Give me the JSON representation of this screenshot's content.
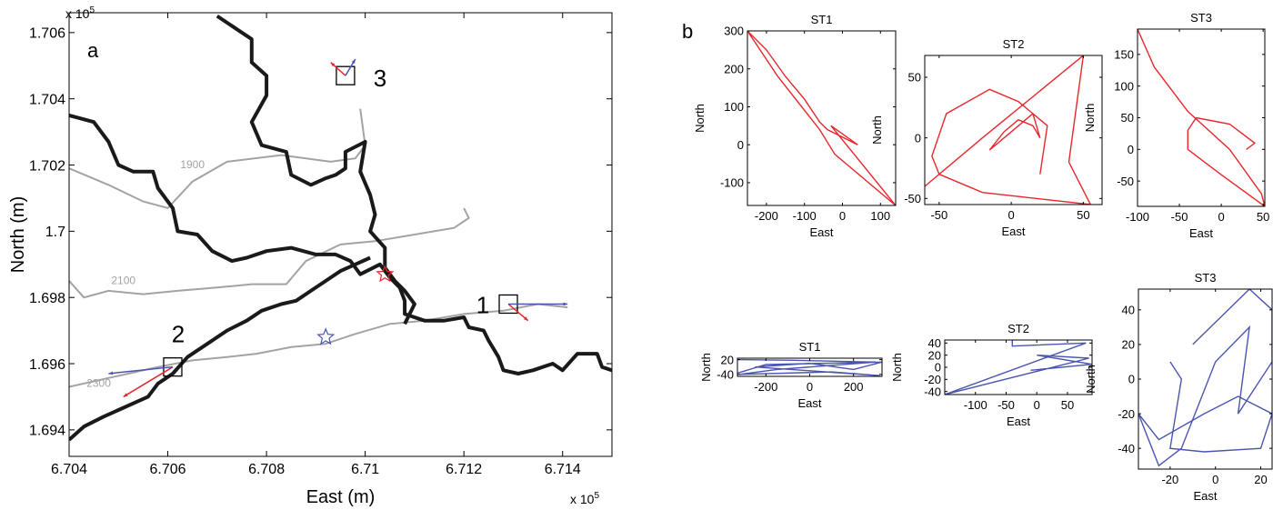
{
  "colors": {
    "red": "#e8262b",
    "blue": "#4a55b0",
    "contour": "#a3a3a3",
    "boundary": "#1a1a1a",
    "axis": "#000000"
  },
  "chart_data": [
    {
      "id": "a",
      "panel_label": "a",
      "type": "map",
      "xlabel": "East (m)",
      "ylabel": "North (m)",
      "x_multiplier": "x 10",
      "x_multiplier_exp": "5",
      "y_multiplier": "x 10",
      "y_multiplier_exp": "5",
      "xlim": [
        6.704,
        6.715
      ],
      "ylim": [
        1.6932,
        1.7066
      ],
      "xticks": [
        6.704,
        6.706,
        6.708,
        6.71,
        6.712,
        6.714
      ],
      "xtick_labels": [
        "6.704",
        "6.706",
        "6.708",
        "6.71",
        "6.712",
        "6.714"
      ],
      "yticks": [
        1.694,
        1.696,
        1.698,
        1.7,
        1.702,
        1.704,
        1.706
      ],
      "ytick_labels": [
        "1.694",
        "1.696",
        "1.698",
        "1.7",
        "1.702",
        "1.704",
        "1.706"
      ],
      "boundaries": [
        [
          [
            6.704,
            1.7035
          ],
          [
            6.7045,
            1.7033
          ],
          [
            6.7048,
            1.7027
          ],
          [
            6.705,
            1.702
          ],
          [
            6.7053,
            1.7018
          ],
          [
            6.7057,
            1.7018
          ],
          [
            6.7058,
            1.7013
          ],
          [
            6.7061,
            1.7007
          ],
          [
            6.7062,
            1.7
          ],
          [
            6.7066,
            1.6999
          ],
          [
            6.7069,
            1.6994
          ],
          [
            6.7073,
            1.6991
          ],
          [
            6.7076,
            1.6992
          ],
          [
            6.708,
            1.6994
          ],
          [
            6.7085,
            1.6995
          ],
          [
            6.709,
            1.6993
          ],
          [
            6.7094,
            1.6993
          ],
          [
            6.7097,
            1.6991
          ],
          [
            6.7099,
            1.6987
          ],
          [
            6.7103,
            1.699
          ],
          [
            6.7105,
            1.6986
          ],
          [
            6.7107,
            1.6983
          ],
          [
            6.7108,
            1.6979
          ],
          [
            6.7108,
            1.6975
          ],
          [
            6.7112,
            1.6973
          ],
          [
            6.7116,
            1.6973
          ],
          [
            6.712,
            1.6974
          ],
          [
            6.7121,
            1.6971
          ],
          [
            6.7124,
            1.697
          ],
          [
            6.7125,
            1.6967
          ],
          [
            6.7127,
            1.6962
          ],
          [
            6.7128,
            1.6958
          ],
          [
            6.7131,
            1.6957
          ],
          [
            6.7134,
            1.6958
          ],
          [
            6.7138,
            1.696
          ],
          [
            6.714,
            1.6958
          ],
          [
            6.7143,
            1.6963
          ],
          [
            6.7147,
            1.6963
          ],
          [
            6.7148,
            1.6959
          ],
          [
            6.715,
            1.6958
          ]
        ],
        [
          [
            6.707,
            1.7065
          ],
          [
            6.7074,
            1.7061
          ],
          [
            6.7077,
            1.7058
          ],
          [
            6.7077,
            1.7051
          ],
          [
            6.708,
            1.7047
          ],
          [
            6.708,
            1.7041
          ],
          [
            6.7077,
            1.7033
          ],
          [
            6.7079,
            1.7026
          ],
          [
            6.7084,
            1.7024
          ],
          [
            6.7085,
            1.7017
          ],
          [
            6.7089,
            1.7014
          ],
          [
            6.7092,
            1.7016
          ],
          [
            6.7094,
            1.7017
          ],
          [
            6.7096,
            1.7019
          ],
          [
            6.7096,
            1.7024
          ],
          [
            6.71,
            1.7027
          ],
          [
            6.7099,
            1.7018
          ],
          [
            6.7101,
            1.7011
          ],
          [
            6.7102,
            1.7005
          ],
          [
            6.7101,
            1.7
          ],
          [
            6.7104,
            1.6995
          ],
          [
            6.7104,
            1.6989
          ],
          [
            6.7106,
            1.6985
          ],
          [
            6.7108,
            1.6982
          ],
          [
            6.711,
            1.6978
          ],
          [
            6.7108,
            1.6972
          ]
        ],
        [
          [
            6.704,
            1.6937
          ],
          [
            6.7043,
            1.6941
          ],
          [
            6.7047,
            1.6944
          ],
          [
            6.705,
            1.6946
          ],
          [
            6.7053,
            1.6948
          ],
          [
            6.7056,
            1.695
          ],
          [
            6.7058,
            1.6954
          ],
          [
            6.7061,
            1.6957
          ],
          [
            6.7064,
            1.6962
          ],
          [
            6.7068,
            1.6966
          ],
          [
            6.7072,
            1.697
          ],
          [
            6.7076,
            1.6973
          ],
          [
            6.7079,
            1.6976
          ],
          [
            6.7083,
            1.6978
          ],
          [
            6.7086,
            1.6979
          ],
          [
            6.7089,
            1.6982
          ],
          [
            6.7092,
            1.6985
          ],
          [
            6.7095,
            1.6988
          ],
          [
            6.7098,
            1.699
          ],
          [
            6.7101,
            1.6992
          ]
        ]
      ],
      "contours": [
        {
          "label": "1900",
          "points": [
            [
              6.704,
              1.7019
            ],
            [
              6.7048,
              1.7014
            ],
            [
              6.7055,
              1.7009
            ],
            [
              6.706,
              1.7007
            ],
            [
              6.7065,
              1.7015
            ],
            [
              6.7072,
              1.7021
            ],
            [
              6.7083,
              1.7023
            ],
            [
              6.7093,
              1.7021
            ],
            [
              6.7098,
              1.7022
            ],
            [
              6.71,
              1.7026
            ],
            [
              6.7099,
              1.7037
            ]
          ]
        },
        {
          "label": "2100",
          "points": [
            [
              6.704,
              1.6985
            ],
            [
              6.7043,
              1.698
            ],
            [
              6.7048,
              1.6982
            ],
            [
              6.7055,
              1.6981
            ],
            [
              6.7062,
              1.6982
            ],
            [
              6.707,
              1.6983
            ],
            [
              6.7077,
              1.6984
            ],
            [
              6.7084,
              1.6984
            ],
            [
              6.7088,
              1.6991
            ],
            [
              6.7095,
              1.6996
            ],
            [
              6.7102,
              1.6997
            ],
            [
              6.711,
              1.6999
            ],
            [
              6.7118,
              1.7001
            ],
            [
              6.7121,
              1.7004
            ],
            [
              6.712,
              1.7007
            ]
          ]
        },
        {
          "label": "2300",
          "points": [
            [
              6.704,
              1.6953
            ],
            [
              6.7046,
              1.6955
            ],
            [
              6.7052,
              1.6957
            ],
            [
              6.7058,
              1.6959
            ],
            [
              6.7065,
              1.6961
            ],
            [
              6.7072,
              1.6962
            ],
            [
              6.7078,
              1.6963
            ],
            [
              6.7085,
              1.6965
            ],
            [
              6.7092,
              1.6966
            ],
            [
              6.7098,
              1.6969
            ],
            [
              6.7105,
              1.6972
            ],
            [
              6.7112,
              1.6973
            ],
            [
              6.712,
              1.6975
            ],
            [
              6.7128,
              1.6976
            ],
            [
              6.7135,
              1.6978
            ],
            [
              6.7141,
              1.6977
            ]
          ]
        }
      ],
      "contour_labels": [
        {
          "text": "1900",
          "x": 6.7065,
          "y": 1.7019
        },
        {
          "text": "2100",
          "x": 6.7051,
          "y": 1.6984
        },
        {
          "text": "2300",
          "x": 6.7046,
          "y": 1.6953
        }
      ],
      "stations": [
        {
          "label": "1",
          "x": 6.7129,
          "y": 1.6978,
          "red_to": [
            6.7133,
            1.6973
          ],
          "blue_to": [
            6.7141,
            1.6978
          ]
        },
        {
          "label": "2",
          "x": 6.7061,
          "y": 1.6959,
          "red_to": [
            6.7051,
            1.695
          ],
          "blue_to": [
            6.7048,
            1.6957
          ]
        },
        {
          "label": "3",
          "x": 6.7096,
          "y": 1.7047,
          "red_to": [
            6.7093,
            1.7051
          ],
          "blue_to": [
            6.7098,
            1.7052
          ]
        }
      ],
      "stars": [
        {
          "x": 6.7104,
          "y": 1.6987,
          "color": "red"
        },
        {
          "x": 6.7092,
          "y": 1.6968,
          "color": "blue"
        }
      ]
    },
    {
      "id": "st1_red",
      "panel_label": "b",
      "type": "line",
      "title": "ST1",
      "xlabel": "East",
      "ylabel": "North",
      "color": "red",
      "xlim": [
        -250,
        140
      ],
      "ylim": [
        -160,
        300
      ],
      "xticks": [
        -200,
        -100,
        0,
        100
      ],
      "yticks": [
        -100,
        0,
        100,
        200,
        300
      ],
      "x": [
        -250,
        -200,
        -150,
        -100,
        -60,
        -40,
        0,
        40,
        -30,
        140,
        -20,
        -60,
        -170,
        -250
      ],
      "y": [
        300,
        250,
        180,
        120,
        60,
        40,
        20,
        0,
        50,
        -160,
        -25,
        40,
        180,
        300
      ]
    },
    {
      "id": "st2_red",
      "type": "line",
      "title": "ST2",
      "xlabel": "East",
      "ylabel": "North",
      "color": "red",
      "xlim": [
        -60,
        63
      ],
      "ylim": [
        -55,
        68
      ],
      "xticks": [
        -50,
        0,
        50
      ],
      "yticks": [
        -50,
        0,
        50
      ],
      "x": [
        -60,
        -20,
        50,
        40,
        55,
        -20,
        -50,
        -55,
        -45,
        -15,
        5,
        15,
        20,
        15,
        5,
        -5,
        -15,
        -5,
        15,
        25,
        20
      ],
      "y": [
        -40,
        0,
        68,
        -20,
        -55,
        -45,
        -30,
        -15,
        20,
        40,
        30,
        20,
        0,
        10,
        15,
        5,
        -10,
        0,
        20,
        10,
        -30
      ]
    },
    {
      "id": "st3_red",
      "type": "line",
      "title": "ST3",
      "xlabel": "East",
      "ylabel": "North",
      "color": "red",
      "xlim": [
        -100,
        52
      ],
      "ylim": [
        -90,
        190
      ],
      "xticks": [
        -100,
        -50,
        0,
        50
      ],
      "yticks": [
        -50,
        0,
        50,
        100,
        150
      ],
      "x": [
        -100,
        -80,
        -40,
        10,
        48,
        52,
        0,
        -20,
        -40,
        -40,
        -30,
        -10,
        10,
        30,
        40,
        30
      ],
      "y": [
        190,
        130,
        60,
        0,
        -70,
        -90,
        -40,
        -20,
        0,
        30,
        50,
        45,
        40,
        20,
        10,
        0
      ]
    },
    {
      "id": "st1_blue",
      "type": "line",
      "title": "ST1",
      "xlabel": "East",
      "ylabel": "North",
      "color": "blue",
      "xlim": [
        -330,
        330
      ],
      "ylim": [
        -48,
        26
      ],
      "xticks": [
        -200,
        0,
        200
      ],
      "yticks": [
        -40,
        20
      ],
      "ytick_labels": [
        "-40",
        "20"
      ],
      "x": [
        -330,
        -100,
        300,
        -150,
        -320,
        100,
        320,
        -250,
        0,
        200,
        330,
        -200,
        -330
      ],
      "y": [
        20,
        18,
        10,
        -20,
        -40,
        -30,
        -45,
        -10,
        5,
        -20,
        10,
        0,
        -35
      ]
    },
    {
      "id": "st2_blue",
      "type": "line",
      "title": "ST2",
      "xlabel": "East",
      "ylabel": "North",
      "color": "blue",
      "xlim": [
        -150,
        90
      ],
      "ylim": [
        -45,
        45
      ],
      "xticks": [
        -100,
        -50,
        0,
        50
      ],
      "yticks": [
        -40,
        -20,
        0,
        20,
        40
      ],
      "x": [
        -40,
        -40,
        80,
        -150,
        85,
        0,
        90,
        -10
      ],
      "y": [
        45,
        35,
        40,
        -45,
        15,
        20,
        5,
        -5
      ]
    },
    {
      "id": "st3_blue",
      "type": "line",
      "title": "ST3",
      "xlabel": "East",
      "ylabel": "North",
      "color": "blue",
      "xlim": [
        -34,
        25
      ],
      "ylim": [
        -52,
        52
      ],
      "xticks": [
        -20,
        0,
        20
      ],
      "yticks": [
        -40,
        -20,
        0,
        20,
        40
      ],
      "x": [
        -10,
        15,
        25,
        25,
        10,
        15,
        0,
        -15,
        -25,
        -34,
        -25,
        -5,
        10,
        25,
        20,
        -5,
        -20,
        -15,
        -20
      ],
      "y": [
        20,
        52,
        40,
        10,
        -20,
        30,
        10,
        -40,
        -50,
        -20,
        -35,
        -20,
        -10,
        -20,
        -40,
        -42,
        -40,
        0,
        10
      ]
    }
  ]
}
